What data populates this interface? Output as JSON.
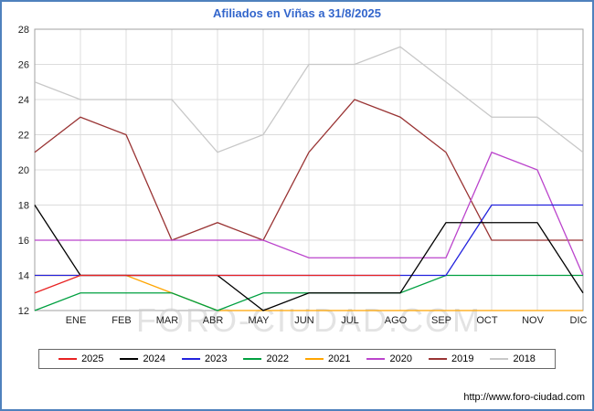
{
  "title": "Afiliados en Viñas a 31/8/2025",
  "watermark": "FORO-CIUDAD.COM",
  "footer_url": "http://www.foro-ciudad.com",
  "frame": {
    "border_color": "#4f81bd",
    "background": "#ffffff",
    "title_color": "#3366cc"
  },
  "chart_data": {
    "type": "line",
    "title": "Afiliados en Viñas a 31/8/2025",
    "xlabel": "",
    "ylabel": "",
    "ylim": [
      12,
      28
    ],
    "y_ticks": [
      12,
      14,
      16,
      18,
      20,
      22,
      24,
      26,
      28
    ],
    "grid": true,
    "legend_position": "bottom",
    "x_months": [
      "ENE",
      "FEB",
      "MAR",
      "ABR",
      "MAY",
      "JUN",
      "JUL",
      "AGO",
      "SEP",
      "OCT",
      "NOV",
      "DIC"
    ],
    "note": "First value of each series is the start-of-year point at the left axis edge; following values are monthly points ENE-DIC. 2025 series ends in AGO (data to 31/8/2025).",
    "series": [
      {
        "name": "2025",
        "color": "#e82222",
        "values": [
          13,
          14,
          14,
          14,
          14,
          14,
          14,
          14,
          14
        ]
      },
      {
        "name": "2024",
        "color": "#000000",
        "values": [
          18,
          14,
          14,
          14,
          14,
          12,
          13,
          13,
          13,
          17,
          17,
          17,
          13
        ]
      },
      {
        "name": "2023",
        "color": "#2222dd",
        "values": [
          14,
          14,
          14,
          14,
          14,
          14,
          14,
          14,
          14,
          14,
          18,
          18,
          18
        ]
      },
      {
        "name": "2022",
        "color": "#00a040",
        "values": [
          12,
          13,
          13,
          13,
          12,
          13,
          13,
          13,
          13,
          14,
          14,
          14,
          14
        ]
      },
      {
        "name": "2021",
        "color": "#ffa500",
        "values": [
          14,
          14,
          14,
          13,
          12,
          12,
          12,
          12,
          12,
          12,
          12,
          12,
          12
        ]
      },
      {
        "name": "2020",
        "color": "#bb44cc",
        "values": [
          16,
          16,
          16,
          16,
          16,
          16,
          15,
          15,
          15,
          15,
          21,
          20,
          14
        ]
      },
      {
        "name": "2019",
        "color": "#993333",
        "values": [
          21,
          23,
          22,
          16,
          17,
          16,
          21,
          24,
          23,
          21,
          16,
          16,
          16
        ]
      },
      {
        "name": "2018",
        "color": "#c8c8c8",
        "values": [
          25,
          24,
          24,
          24,
          21,
          22,
          26,
          26,
          27,
          25,
          23,
          23,
          21
        ]
      }
    ]
  }
}
